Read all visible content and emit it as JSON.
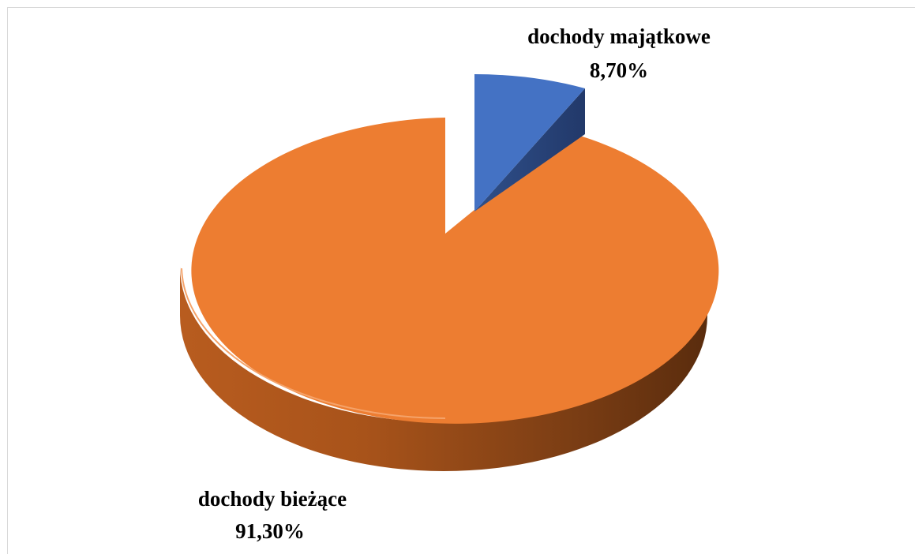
{
  "chart_data": {
    "type": "pie",
    "title": "",
    "categories": [
      "dochody majątkowe",
      "dochody bieżące"
    ],
    "values": [
      8.7,
      91.3
    ],
    "value_labels": [
      "8,70%",
      "91,30%"
    ],
    "colors": [
      "#4472c4",
      "#ed7d31"
    ],
    "exploded": true,
    "three_d": true,
    "legend": "none"
  }
}
